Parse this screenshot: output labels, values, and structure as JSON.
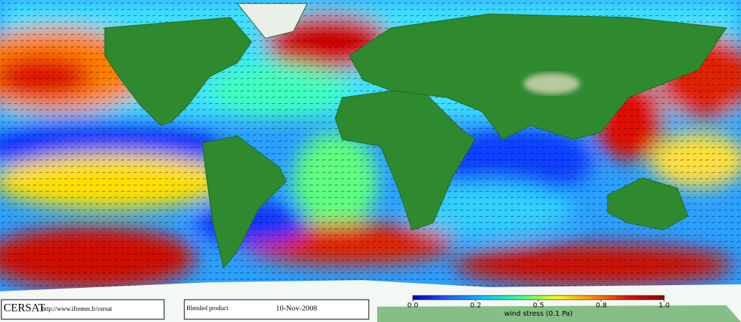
{
  "footer": {
    "logo": "CERSAT",
    "url": "http://www.ifremer.fr/cersat",
    "product": "Blended product",
    "date": "10-Nov-2008"
  },
  "colorbar": {
    "ticks": [
      {
        "value": 0,
        "label": "0.0"
      },
      0.2,
      0.5,
      0.8,
      {
        "value": 1,
        "label": "1.0"
      }
    ],
    "label": "wind stress (0.1 Pa)",
    "colors": [
      "#0000c8",
      "#2060ff",
      "#00c8ff",
      "#40ff90",
      "#ffff00",
      "#ff9000",
      "#e01000",
      "#900000"
    ]
  }
}
